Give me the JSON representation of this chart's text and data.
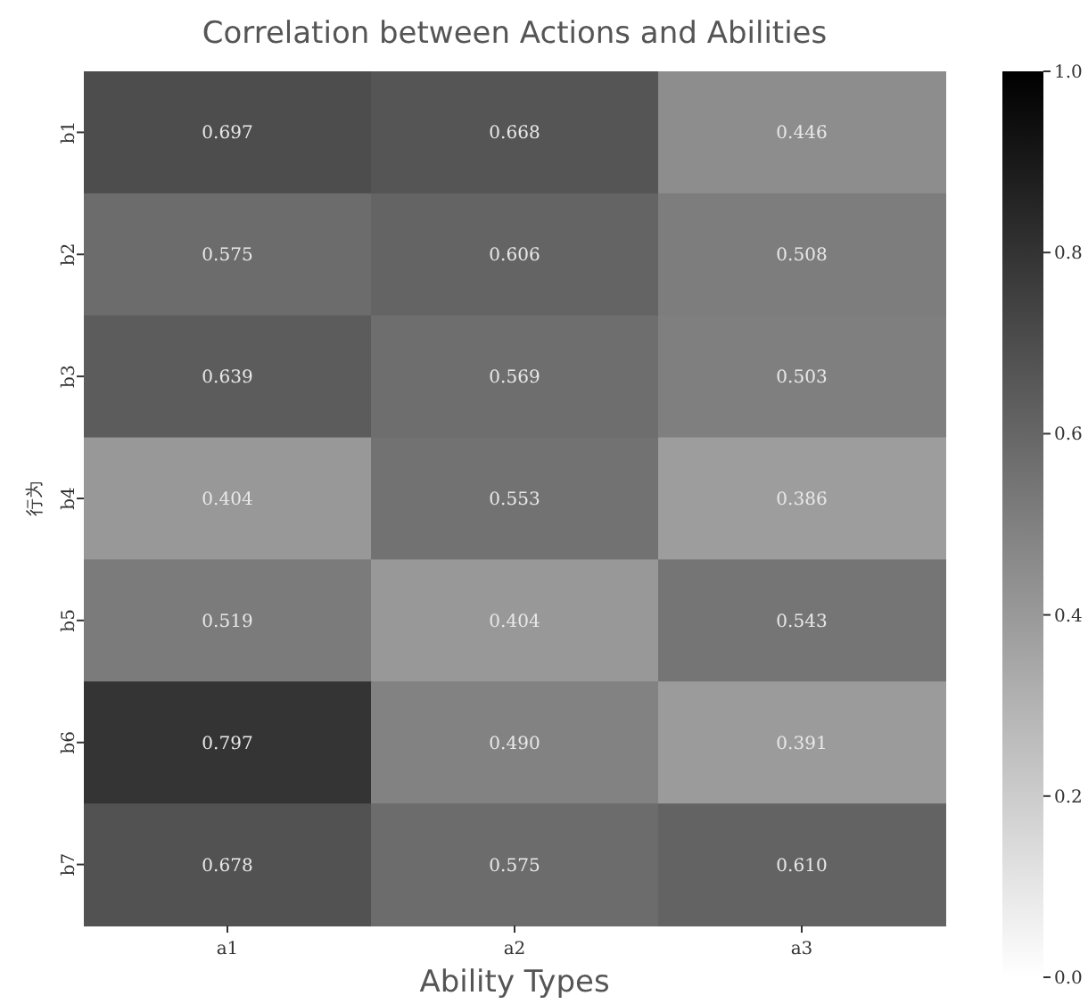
{
  "chart_data": {
    "type": "heatmap",
    "title": "Correlation between Actions and Abilities",
    "xlabel": "Ability Types",
    "ylabel": "行为",
    "categories": [
      "a1",
      "a2",
      "a3"
    ],
    "y_categories": [
      "b1",
      "b2",
      "b3",
      "b4",
      "b5",
      "b6",
      "b7"
    ],
    "cells": [
      [
        0.697,
        0.668,
        0.446
      ],
      [
        0.575,
        0.606,
        0.508
      ],
      [
        0.639,
        0.569,
        0.503
      ],
      [
        0.404,
        0.553,
        0.386
      ],
      [
        0.519,
        0.404,
        0.543
      ],
      [
        0.797,
        0.49,
        0.391
      ],
      [
        0.678,
        0.575,
        0.61
      ]
    ],
    "cell_labels": [
      [
        "0.697",
        "0.668",
        "0.446"
      ],
      [
        "0.575",
        "0.606",
        "0.508"
      ],
      [
        "0.639",
        "0.569",
        "0.503"
      ],
      [
        "0.404",
        "0.553",
        "0.386"
      ],
      [
        "0.519",
        "0.404",
        "0.543"
      ],
      [
        "0.797",
        "0.490",
        "0.391"
      ],
      [
        "0.678",
        "0.575",
        "0.610"
      ]
    ],
    "data_labels": true,
    "clim": [
      0,
      1
    ],
    "cticks": [
      {
        "value": 0,
        "label": "0.0"
      },
      {
        "value": 0.2,
        "label": "0.2"
      },
      {
        "value": 0.4,
        "label": "0.4"
      },
      {
        "value": 0.6,
        "label": "0.6"
      },
      {
        "value": 0.8,
        "label": "0.8"
      },
      {
        "value": 1,
        "label": "1.0"
      }
    ]
  }
}
